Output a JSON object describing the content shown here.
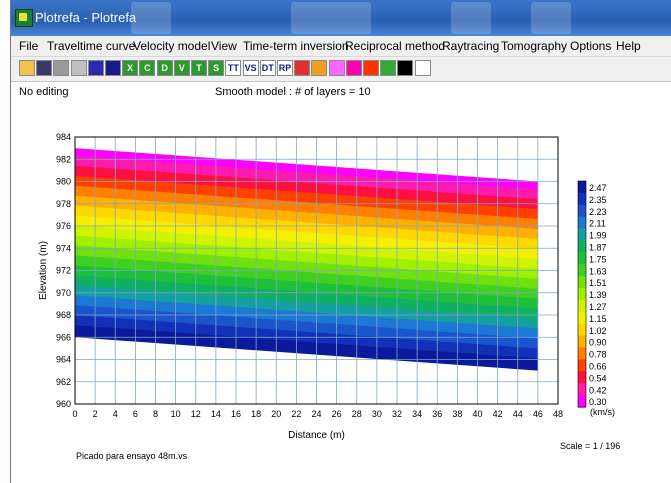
{
  "window": {
    "title": "Plotrefa - Plotrefa"
  },
  "menu": [
    "File",
    "Traveltime curve",
    "Velocity model",
    "View",
    "Time-term inversion",
    "Reciprocal method",
    "Raytracing",
    "Tomography",
    "Options",
    "Help"
  ],
  "toolbar": {
    "buttons": [
      {
        "icon": "open-folder-icon",
        "color": "#f2c34b",
        "label": ""
      },
      {
        "icon": "save-icon",
        "color": "#3a3a6a",
        "label": ""
      },
      {
        "icon": "print-icon",
        "color": "#9a9a9a",
        "label": ""
      },
      {
        "icon": "pick-icon",
        "color": "#c0c0c0",
        "label": ""
      },
      {
        "icon": "blue-square-icon",
        "color": "#2a2ab0",
        "label": ""
      },
      {
        "icon": "blue-square-icon",
        "color": "#1a1a8a",
        "label": ""
      },
      {
        "icon": "green-x-icon",
        "color": "#2e9a2e",
        "label": "X"
      },
      {
        "icon": "green-c-icon",
        "color": "#2e9a2e",
        "label": "C"
      },
      {
        "icon": "green-d-icon",
        "color": "#2e9a2e",
        "label": "D"
      },
      {
        "icon": "green-v-icon",
        "color": "#2e9a2e",
        "label": "V"
      },
      {
        "icon": "green-t-icon",
        "color": "#2e9a2e",
        "label": "T"
      },
      {
        "icon": "green-s-icon",
        "color": "#2e9a2e",
        "label": "S"
      },
      {
        "icon": "tt-icon",
        "color": "#ffffff",
        "label": "TT"
      },
      {
        "icon": "vs-icon",
        "color": "#ffffff",
        "label": "VS"
      },
      {
        "icon": "dt-icon",
        "color": "#ffffff",
        "label": "DT"
      },
      {
        "icon": "rp-icon",
        "color": "#ffffff",
        "label": "RP"
      },
      {
        "icon": "arrow-left-icon",
        "color": "#e03030",
        "label": ""
      },
      {
        "icon": "arrow-right-icon",
        "color": "#f0a020",
        "label": ""
      },
      {
        "icon": "cut-icon",
        "color": "#ff66ff",
        "label": ""
      },
      {
        "icon": "palette-icon",
        "color": "#ff00aa",
        "label": ""
      },
      {
        "icon": "colorbar-icon",
        "color": "#ff3300",
        "label": ""
      },
      {
        "icon": "rainbow-icon",
        "color": "#33aa33",
        "label": ""
      },
      {
        "icon": "line-icon",
        "color": "#000000",
        "label": ""
      },
      {
        "icon": "cursor-icon",
        "color": "#ffffff",
        "label": ""
      }
    ]
  },
  "status": {
    "left": "No editing",
    "center": "Smooth model : # of layers = 10"
  },
  "chart_data": {
    "type": "heatmap",
    "xlabel": "Distance (m)",
    "ylabel": "Elevation (m)",
    "xlim": [
      0,
      48
    ],
    "ylim": [
      960,
      984
    ],
    "xticks": [
      0,
      2,
      4,
      6,
      8,
      10,
      12,
      14,
      16,
      18,
      20,
      22,
      24,
      26,
      28,
      30,
      32,
      34,
      36,
      38,
      40,
      42,
      44,
      46,
      48
    ],
    "yticks": [
      960,
      962,
      964,
      966,
      968,
      970,
      972,
      974,
      976,
      978,
      980,
      982,
      984
    ],
    "grid": true,
    "model_x_range": [
      0,
      46
    ],
    "surface_elevation": [
      983,
      980
    ],
    "bottom_elevation": [
      966,
      963
    ],
    "layers": 10,
    "colorbar": {
      "unit": "(km/s)",
      "values": [
        2.47,
        2.35,
        2.23,
        2.11,
        1.99,
        1.87,
        1.75,
        1.63,
        1.51,
        1.39,
        1.27,
        1.15,
        1.02,
        0.9,
        0.78,
        0.66,
        0.54,
        0.42,
        0.3
      ],
      "colors": [
        "#0a1a9a",
        "#1230b8",
        "#1a55cc",
        "#1b78d4",
        "#15a0a0",
        "#10b060",
        "#1ec03a",
        "#40d020",
        "#70e010",
        "#a0f000",
        "#d0f400",
        "#f4f000",
        "#ffd800",
        "#ffb000",
        "#ff8000",
        "#ff4000",
        "#ff1040",
        "#ff1ab0",
        "#ff00ff"
      ]
    },
    "footer_left": "Picado para ensayo 48m.vs",
    "scale": "Scale = 1 / 196"
  }
}
